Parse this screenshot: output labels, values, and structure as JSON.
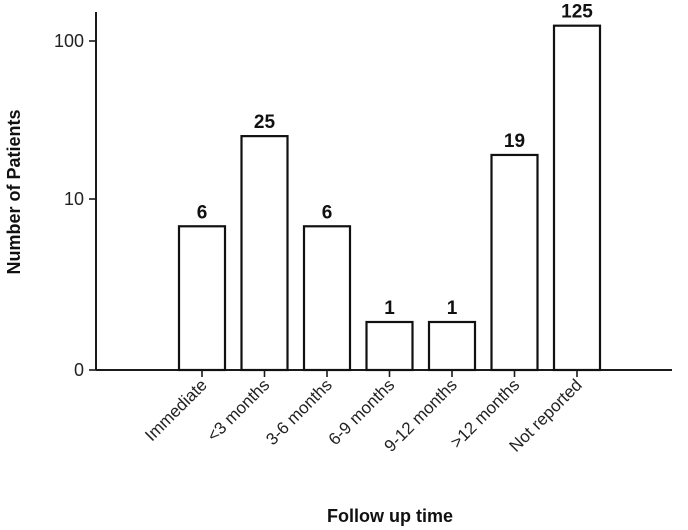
{
  "chart_data": {
    "type": "bar",
    "xlabel": "Follow up time",
    "ylabel": "Number of Patients",
    "y_scale": "log",
    "yticks": [
      0,
      10,
      100
    ],
    "categories": [
      "Immediate",
      "<3 months",
      "3-6 months",
      "6-9 months",
      "9-12 months",
      ">12 months",
      "Not reported"
    ],
    "values": [
      6,
      25,
      6,
      1,
      1,
      19,
      125
    ],
    "grid": false,
    "legend": "none",
    "bar_fill": "#ffffff",
    "bar_stroke": "#111111"
  }
}
